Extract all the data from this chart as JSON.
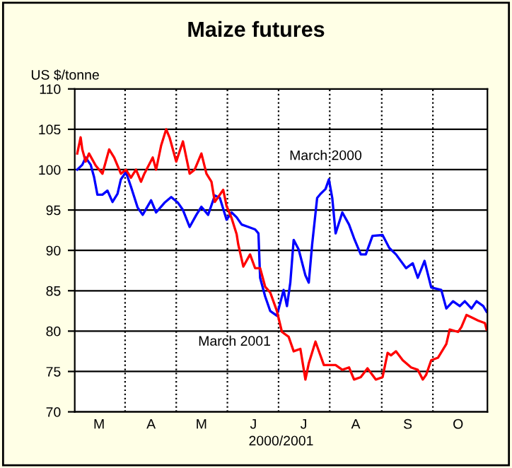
{
  "chart_data": {
    "type": "line",
    "title": "Maize futures",
    "ylabel": "US $/tonne",
    "xlabel": "2000/2001",
    "ylim": [
      70,
      110
    ],
    "yticks": [
      70,
      75,
      80,
      85,
      90,
      95,
      100,
      105,
      110
    ],
    "grid": true,
    "legend": false,
    "marker": "none",
    "line_style": "solid",
    "categories": [
      null,
      null,
      null,
      null,
      null,
      null,
      null,
      null,
      null,
      null,
      null,
      null,
      null,
      null,
      "M",
      null,
      null,
      null,
      null,
      null,
      null,
      null,
      null,
      null,
      null,
      null,
      null,
      null,
      null,
      null,
      null,
      null,
      null,
      null,
      null,
      null,
      null,
      null,
      null,
      null,
      null,
      null,
      null,
      null,
      null,
      "A",
      null,
      null,
      null,
      null,
      null,
      null,
      null,
      null,
      null,
      null,
      null,
      null,
      null,
      null,
      null,
      null,
      null,
      null,
      null,
      null,
      null,
      null,
      null,
      null,
      null,
      null,
      null,
      null,
      null,
      "M",
      null,
      null,
      null,
      null,
      null,
      null,
      null,
      null,
      null,
      null,
      null,
      null,
      null,
      null,
      null,
      null,
      null,
      null,
      null,
      null,
      null,
      null,
      null,
      null,
      null,
      null,
      null,
      null,
      null,
      null,
      "J",
      null,
      null,
      null,
      null,
      null,
      null,
      null,
      null,
      null,
      null,
      null,
      null,
      null,
      null,
      null,
      null,
      null,
      null,
      null,
      null,
      null,
      null,
      null,
      null,
      null,
      null,
      null,
      null,
      null,
      "J",
      null,
      null,
      null,
      null,
      null,
      null,
      null,
      null,
      null,
      null,
      null,
      null,
      null,
      null,
      null,
      null,
      null,
      null,
      null,
      null,
      null,
      null,
      null,
      null,
      null,
      null,
      null,
      null,
      null,
      null,
      "A",
      null,
      null,
      null,
      null,
      null,
      null,
      null,
      null,
      null,
      null,
      null,
      null,
      null,
      null,
      null,
      null,
      null,
      null,
      null,
      null,
      null,
      null,
      null,
      null,
      null,
      null,
      null,
      null,
      null,
      null,
      "S",
      null,
      null,
      null,
      null,
      null,
      null,
      null,
      null,
      null,
      null,
      null,
      null,
      null,
      null,
      null,
      null,
      null,
      null,
      null,
      null,
      null,
      null,
      null,
      null,
      null,
      null,
      null,
      null,
      null,
      "O",
      null,
      null,
      null,
      null,
      null,
      null,
      null,
      null,
      null,
      null,
      null,
      null,
      null,
      null,
      null,
      null,
      null
    ],
    "series": [
      {
        "name": "March 2000",
        "color": "#0000ff",
        "values": [
          null,
          100,
          null,
          null,
          100.6,
          null,
          101.5,
          null,
          null,
          100.6,
          null,
          99.1,
          null,
          96.9,
          null,
          null,
          96.9,
          null,
          null,
          97.4,
          null,
          null,
          96,
          null,
          null,
          97,
          null,
          98.8,
          null,
          null,
          99.7,
          null,
          null,
          97.9,
          null,
          null,
          null,
          95.3,
          null,
          null,
          94.4,
          null,
          null,
          null,
          null,
          96.2,
          null,
          null,
          94.7,
          null,
          null,
          null,
          null,
          95.9,
          null,
          null,
          null,
          96.6,
          null,
          null,
          null,
          95.9,
          null,
          null,
          95,
          null,
          null,
          null,
          92.9,
          null,
          null,
          null,
          94.4,
          null,
          null,
          95.4,
          null,
          null,
          null,
          94.4,
          null,
          null,
          null,
          96.8,
          null,
          null,
          96.5,
          null,
          null,
          null,
          93.8,
          null,
          null,
          94.7,
          null,
          null,
          94.1,
          null,
          null,
          93.2,
          null,
          null,
          null,
          92.9,
          null,
          null,
          null,
          92.6,
          null,
          92.1,
          86.6,
          null,
          null,
          84.3,
          null,
          null,
          82.5,
          null,
          null,
          null,
          81.9,
          null,
          null,
          null,
          85.1,
          null,
          83.1,
          null,
          86,
          null,
          91.3,
          null,
          null,
          90.1,
          null,
          null,
          null,
          86.9,
          null,
          86,
          null,
          90.7,
          null,
          null,
          96.5,
          null,
          97,
          null,
          null,
          97.6,
          null,
          98.8,
          null,
          96.5,
          null,
          92.1,
          null,
          null,
          null,
          94.7,
          null,
          null,
          null,
          93.2,
          null,
          null,
          91.5,
          null,
          null,
          null,
          89.5,
          null,
          null,
          89.5,
          null,
          null,
          null,
          91.8,
          null,
          null,
          null,
          null,
          null,
          91.9,
          null,
          null,
          null,
          90.3,
          null,
          null,
          null,
          89.5,
          null,
          null,
          null,
          null,
          null,
          87.8,
          null,
          null,
          null,
          88.4,
          null,
          null,
          86.6,
          null,
          null,
          null,
          88.7,
          null,
          null,
          null,
          85.4,
          null,
          null,
          null,
          null,
          null,
          85.1,
          null,
          null,
          82.8,
          null,
          null,
          null,
          83.7,
          null,
          null,
          null,
          83.1,
          null,
          null,
          83.7,
          null,
          null,
          null,
          82.8,
          null,
          null,
          83.7,
          null,
          null,
          null,
          83.1,
          null,
          82.4
        ]
      },
      {
        "name": "March 2001",
        "color": "#ff0000",
        "values": [
          null,
          102,
          null,
          104,
          102.5,
          null,
          101,
          null,
          102,
          null,
          null,
          null,
          100.5,
          null,
          null,
          null,
          99.5,
          null,
          null,
          null,
          102.5,
          null,
          null,
          101.5,
          null,
          null,
          null,
          99.5,
          null,
          null,
          100,
          null,
          null,
          99,
          null,
          null,
          100,
          null,
          null,
          98.5,
          null,
          99.5,
          null,
          null,
          null,
          null,
          101.5,
          null,
          100,
          null,
          null,
          103,
          null,
          null,
          105,
          null,
          104,
          null,
          null,
          null,
          101,
          null,
          null,
          null,
          103.5,
          null,
          null,
          null,
          99.5,
          null,
          null,
          100,
          null,
          null,
          null,
          102,
          null,
          null,
          99.5,
          null,
          null,
          98.5,
          null,
          96,
          null,
          null,
          null,
          null,
          97.5,
          null,
          95.5,
          null,
          null,
          94,
          null,
          null,
          92,
          90.7,
          null,
          null,
          88,
          null,
          null,
          null,
          89.5,
          null,
          null,
          87.8,
          null,
          null,
          87.8,
          null,
          null,
          85.5,
          null,
          null,
          84.8,
          null,
          null,
          null,
          82.5,
          null,
          null,
          79.9,
          null,
          null,
          null,
          79.3,
          null,
          null,
          77.5,
          null,
          null,
          null,
          77.8,
          null,
          null,
          74,
          null,
          76,
          null,
          null,
          null,
          78.7,
          null,
          null,
          null,
          null,
          75.8,
          null,
          null,
          null,
          null,
          null,
          null,
          75.8,
          null,
          null,
          null,
          75.2,
          null,
          null,
          null,
          75.5,
          null,
          null,
          74,
          null,
          null,
          null,
          74.3,
          null,
          null,
          null,
          75.4,
          null,
          null,
          null,
          null,
          74,
          null,
          null,
          null,
          74.3,
          null,
          null,
          77.3,
          null,
          77,
          null,
          null,
          77.5,
          null,
          null,
          null,
          76.4,
          null,
          null,
          null,
          null,
          75.5,
          null,
          null,
          null,
          75.2,
          null,
          null,
          74,
          null,
          74.6,
          null,
          null,
          76.4,
          null,
          null,
          null,
          76.7,
          null,
          null,
          null,
          null,
          78.4,
          null,
          80.2,
          null,
          null,
          null,
          null,
          79.9,
          null,
          80.5,
          null,
          null,
          82,
          null,
          null,
          null,
          81.6,
          null,
          null,
          81.3,
          null,
          null,
          null,
          81,
          80.2
        ]
      }
    ]
  }
}
